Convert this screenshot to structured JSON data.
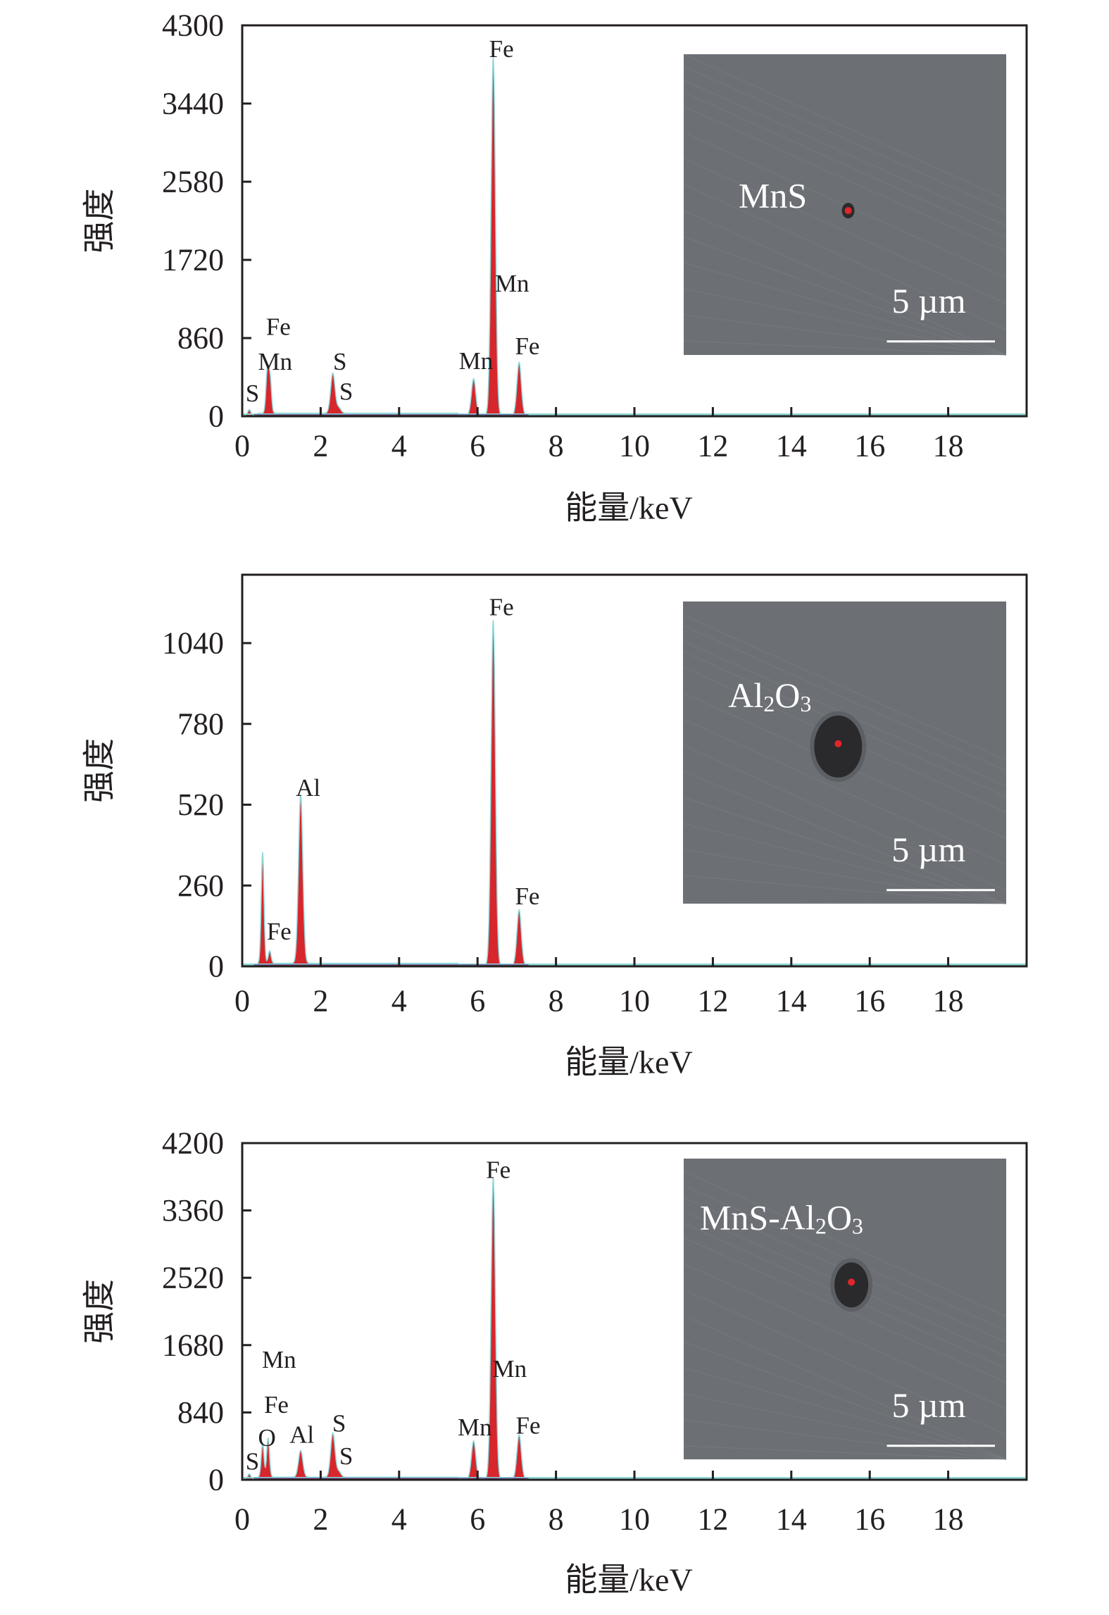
{
  "chart_data": [
    {
      "type": "area",
      "title": "",
      "xlabel": "能量/keV",
      "ylabel": "强度",
      "xlim": [
        0,
        20
      ],
      "ylim": [
        0,
        4300
      ],
      "xticks": [
        0,
        2,
        4,
        6,
        8,
        10,
        12,
        14,
        16,
        18
      ],
      "yticks": [
        0,
        860,
        1720,
        2580,
        3440,
        4300
      ],
      "grid": false,
      "peaks": [
        {
          "x": 0.18,
          "y": 60
        },
        {
          "x": 0.64,
          "y": 460
        },
        {
          "x": 0.71,
          "y": 380
        },
        {
          "x": 2.31,
          "y": 440
        },
        {
          "x": 2.46,
          "y": 60
        },
        {
          "x": 5.9,
          "y": 400
        },
        {
          "x": 6.4,
          "y": 3940
        },
        {
          "x": 7.06,
          "y": 580
        }
      ],
      "annotations": [
        {
          "text": "Fe",
          "x": 6.61,
          "y": 4040
        },
        {
          "text": "Mn",
          "x": 6.88,
          "y": 1460
        },
        {
          "text": "Fe",
          "x": 0.92,
          "y": 985
        },
        {
          "text": "Mn",
          "x": 0.84,
          "y": 600
        },
        {
          "text": "S",
          "x": 0.26,
          "y": 250
        },
        {
          "text": "S",
          "x": 2.49,
          "y": 600
        },
        {
          "text": "S",
          "x": 2.65,
          "y": 270
        },
        {
          "text": "Mn",
          "x": 5.96,
          "y": 610
        },
        {
          "text": "Fe",
          "x": 7.27,
          "y": 770
        }
      ],
      "inset": {
        "label": [
          {
            "t": "MnS"
          }
        ],
        "scale_bar": "5 µm",
        "feature": "dot"
      }
    },
    {
      "type": "area",
      "title": "",
      "xlabel": "能量/keV",
      "ylabel": "强度",
      "xlim": [
        0,
        20
      ],
      "ylim": [
        0,
        1260
      ],
      "xticks": [
        0,
        2,
        4,
        6,
        8,
        10,
        12,
        14,
        16,
        18
      ],
      "yticks": [
        0,
        260,
        520,
        780,
        1040
      ],
      "grid": false,
      "peaks": [
        {
          "x": 0.52,
          "y": 357
        },
        {
          "x": 0.7,
          "y": 40
        },
        {
          "x": 1.49,
          "y": 542
        },
        {
          "x": 6.4,
          "y": 1110
        },
        {
          "x": 7.06,
          "y": 178
        }
      ],
      "annotations": [
        {
          "text": "Fe",
          "x": 6.61,
          "y": 1156
        },
        {
          "text": "Al",
          "x": 1.68,
          "y": 575
        },
        {
          "text": "Fe",
          "x": 0.94,
          "y": 112
        },
        {
          "text": "Fe",
          "x": 7.27,
          "y": 225
        }
      ],
      "inset": {
        "label": [
          {
            "t": "Al"
          },
          {
            "t": "2",
            "sub": true
          },
          {
            "t": "O"
          },
          {
            "t": "3",
            "sub": true
          }
        ],
        "scale_bar": "5 µm",
        "feature": "large-particle"
      }
    },
    {
      "type": "area",
      "title": "",
      "xlabel": "能量/keV",
      "ylabel": "强度",
      "xlim": [
        0,
        20
      ],
      "ylim": [
        0,
        4200
      ],
      "xticks": [
        0,
        2,
        4,
        6,
        8,
        10,
        12,
        14,
        16,
        18
      ],
      "yticks": [
        0,
        840,
        1680,
        2520,
        3360,
        4200
      ],
      "grid": false,
      "peaks": [
        {
          "x": 0.18,
          "y": 60
        },
        {
          "x": 0.52,
          "y": 420
        },
        {
          "x": 0.66,
          "y": 490
        },
        {
          "x": 1.49,
          "y": 333
        },
        {
          "x": 2.31,
          "y": 550
        },
        {
          "x": 2.46,
          "y": 70
        },
        {
          "x": 5.9,
          "y": 474
        },
        {
          "x": 6.4,
          "y": 3760
        },
        {
          "x": 7.06,
          "y": 550
        }
      ],
      "annotations": [
        {
          "text": "Fe",
          "x": 6.53,
          "y": 3867
        },
        {
          "text": "Mn",
          "x": 0.94,
          "y": 1498
        },
        {
          "text": "Fe",
          "x": 0.87,
          "y": 935
        },
        {
          "text": "O",
          "x": 0.63,
          "y": 525
        },
        {
          "text": "S",
          "x": 0.26,
          "y": 230
        },
        {
          "text": "Al",
          "x": 1.52,
          "y": 563
        },
        {
          "text": "S",
          "x": 2.47,
          "y": 704
        },
        {
          "text": "S",
          "x": 2.65,
          "y": 294
        },
        {
          "text": "Mn",
          "x": 5.93,
          "y": 653
        },
        {
          "text": "Mn",
          "x": 6.82,
          "y": 1383
        },
        {
          "text": "Fe",
          "x": 7.29,
          "y": 678
        }
      ],
      "inset": {
        "label": [
          {
            "t": "MnS-Al"
          },
          {
            "t": "2",
            "sub": true
          },
          {
            "t": "O"
          },
          {
            "t": "3",
            "sub": true
          }
        ],
        "scale_bar": "5 µm",
        "feature": "small-particle"
      }
    }
  ],
  "colors": {
    "peak_fill": "#d7262c",
    "peak_edge": "#8fd8d8",
    "baseline": "#5a3e8c",
    "inset_bg": "#6c6f74",
    "axis": "#231f20"
  }
}
